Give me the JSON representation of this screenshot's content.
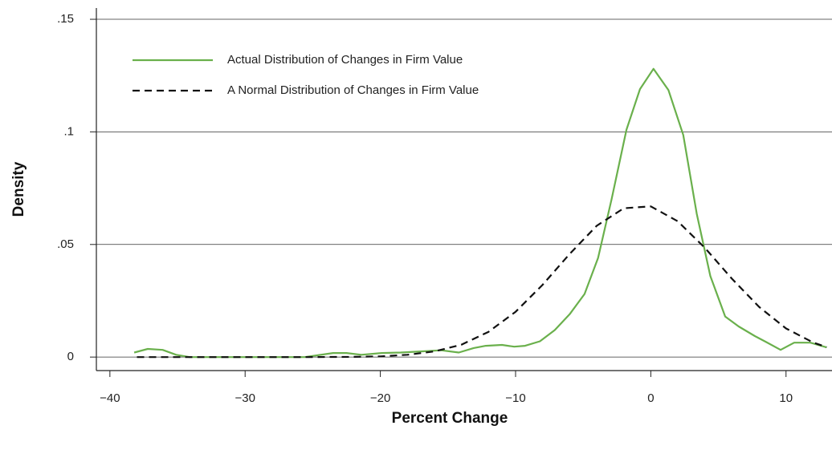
{
  "chart_data": {
    "type": "line",
    "x_label": "Percent Change",
    "y_label": "Density",
    "xlim": [
      -41,
      13.4
    ],
    "ylim": [
      -0.006,
      0.155
    ],
    "xticks": [
      {
        "value": -40,
        "label": "−40"
      },
      {
        "value": -30,
        "label": "−30"
      },
      {
        "value": -20,
        "label": "−20"
      },
      {
        "value": -10,
        "label": "−10"
      },
      0,
      10
    ],
    "yticks": [
      {
        "value": 0,
        "label": "0"
      },
      {
        "value": 0.05,
        "label": ".05"
      },
      {
        "value": 0.1,
        "label": ".1"
      },
      {
        "value": 0.15,
        "label": ".15"
      }
    ],
    "grid": true,
    "legend": "top-left",
    "series": [
      {
        "name": "Actual Distribution of Changes in Firm Value",
        "color": "#6ab04c",
        "style": "solid",
        "x": [
          -38.2,
          -37.2,
          -36.1,
          -35.1,
          -34.1,
          -25.6,
          -23.5,
          -22.5,
          -21.4,
          -19.9,
          -18.5,
          -17,
          -15.5,
          -14.2,
          -13.1,
          -12.2,
          -11,
          -10.1,
          -9.3,
          -8.2,
          -7.1,
          -6,
          -4.9,
          -3.9,
          -2.9,
          -1.8,
          -0.8,
          0.2,
          1.3,
          2.4,
          3.4,
          4.4,
          5.5,
          6.5,
          7.7,
          8.5,
          9.6,
          10.6,
          11.8,
          13
        ],
        "values": [
          0.002,
          0.0036,
          0.0032,
          0.001,
          0,
          0,
          0.0018,
          0.0018,
          0.001,
          0.0018,
          0.002,
          0.0025,
          0.003,
          0.002,
          0.004,
          0.005,
          0.0054,
          0.0046,
          0.005,
          0.007,
          0.012,
          0.019,
          0.028,
          0.044,
          0.07,
          0.101,
          0.119,
          0.128,
          0.1186,
          0.0986,
          0.0636,
          0.036,
          0.018,
          0.0136,
          0.0093,
          0.0068,
          0.0032,
          0.0064,
          0.0064,
          0.0043
        ]
      },
      {
        "name": "A Normal Distribution of Changes in Firm Value",
        "color": "#111111",
        "style": "dashed",
        "x": [
          -38,
          -34,
          -30,
          -26,
          -22,
          -20,
          -18,
          -16,
          -14,
          -12,
          -10,
          -8,
          -6,
          -4,
          -2,
          0,
          2,
          4,
          6,
          8,
          10,
          12,
          13
        ],
        "values": [
          0,
          0,
          0,
          0,
          0.0001,
          0.0003,
          0.001,
          0.0025,
          0.0055,
          0.0112,
          0.0201,
          0.0321,
          0.0458,
          0.0583,
          0.0661,
          0.0669,
          0.0603,
          0.0485,
          0.0348,
          0.0223,
          0.0127,
          0.0065,
          0.0044
        ]
      }
    ]
  }
}
